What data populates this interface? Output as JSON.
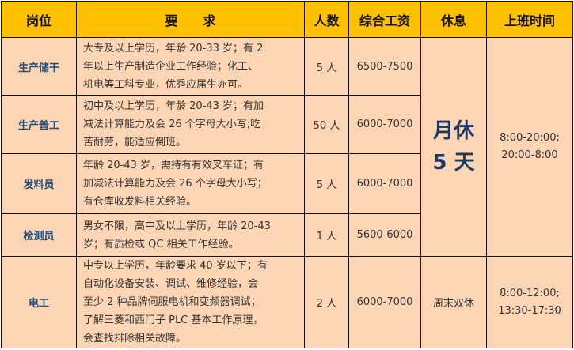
{
  "headers": [
    "岗位",
    "要　　求",
    "人数",
    "综合工资",
    "休息",
    "上班时间"
  ],
  "rows": [
    {
      "job": "生产储干",
      "req": [
        "大专及以上学历，年龄 20-33 岁；有 2",
        "年以上生产制造企业工作经验；化工、",
        "机电等工科专业，优秀应届生亦可。"
      ],
      "count": "5 人",
      "salary": "6500-7500"
    },
    {
      "job": "生产普工",
      "req": [
        "初中及以上学历，年龄 20-43 岁；有加",
        "减法计算能力及会 26 个字母大小写;吃",
        "苦耐劳，能适应倒班。"
      ],
      "count": "50 人",
      "salary": "6000-7000"
    },
    {
      "job": "发料员",
      "req": [
        "年龄 20-43 岁，需持有有效叉车证；有",
        "加减法计算能力及会 26 个字母大小写；",
        "有仓库收发料相关经验。"
      ],
      "count": "5 人",
      "salary": "6000-7000"
    },
    {
      "job": "检测员",
      "req": [
        "男女不限，高中及以上学历，年龄 20-43",
        "岁；有质检或 QC 相关工作经验。"
      ],
      "count": "1 人",
      "salary": "5600-6000"
    },
    {
      "job": "电工",
      "req": [
        "中专以上学历，年龄要求 40 岁以下；有",
        "自动化设备安装、调试、维修经验，会",
        "至少 2 种品牌伺服电机和变频器调试；",
        "了解三菱和西门子 PLC 基本工作原理，",
        "会查找排除相关故障。"
      ],
      "count": "2 人",
      "salary": "6000-7000"
    }
  ],
  "rest_merged": [
    "月休",
    "5 天"
  ],
  "time_merged": [
    "8:00-20:00;",
    "20:00-8:00"
  ],
  "rest_electrician": "周末双休",
  "time_electrician": [
    "8:00-12:00;",
    "13:30-17:30"
  ]
}
